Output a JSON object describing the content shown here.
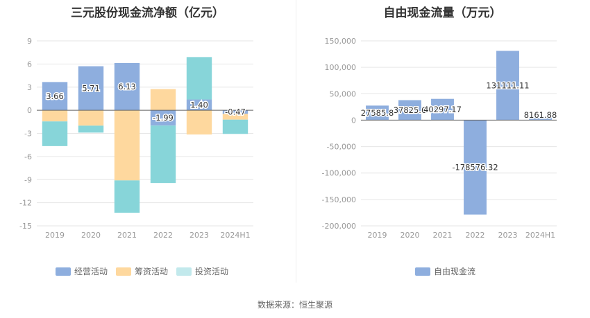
{
  "colors": {
    "operating": "#8eaede",
    "financing": "#fed89e",
    "investing": "#87d5d9",
    "fcf": "#8eaede"
  },
  "source": "数据来源：恒生聚源",
  "chart_data": [
    {
      "type": "bar",
      "stacked": true,
      "title": "三元股份现金流净额（亿元）",
      "categories": [
        "2019",
        "2020",
        "2021",
        "2022",
        "2023",
        "2024H1"
      ],
      "y_ticks": [
        "9",
        "6",
        "3",
        "0",
        "-3",
        "-6",
        "-9",
        "-12",
        "-15"
      ],
      "ylim": [
        -15,
        9
      ],
      "grid": true,
      "legend_position": "bottom",
      "series": [
        {
          "name": "经营活动",
          "color_key": "operating",
          "values": [
            3.66,
            5.71,
            6.13,
            -1.99,
            1.4,
            -0.47
          ],
          "labels": [
            "3.66",
            "5.71",
            "6.13",
            "-1.99",
            "1.40",
            "-0.47"
          ]
        },
        {
          "name": "筹资活动",
          "color_key": "financing",
          "values": [
            -1.45,
            -2.0,
            -9.1,
            2.75,
            -3.15,
            -0.75
          ]
        },
        {
          "name": "投资活动",
          "color_key": "investing",
          "values": [
            -3.2,
            -0.9,
            -4.2,
            -7.45,
            5.5,
            -1.85
          ]
        }
      ]
    },
    {
      "type": "bar",
      "title": "自由现金流量（万元）",
      "categories": [
        "2019",
        "2020",
        "2021",
        "2022",
        "2023",
        "2024H1"
      ],
      "y_ticks": [
        "150,000",
        "100,000",
        "50,000",
        "0",
        "-50,000",
        "-100,000",
        "-150,000",
        "-200,000"
      ],
      "ylim": [
        -200000,
        150000
      ],
      "grid": true,
      "legend_position": "bottom",
      "series": [
        {
          "name": "自由现金流",
          "color_key": "fcf",
          "values": [
            27585.8,
            37825.6,
            40297.17,
            -178576.32,
            131111.11,
            8161.88
          ],
          "labels": [
            "27585.8",
            "37825.6",
            "40297.17",
            "-178576.32",
            "131111.11",
            "8161.88"
          ]
        }
      ]
    }
  ]
}
